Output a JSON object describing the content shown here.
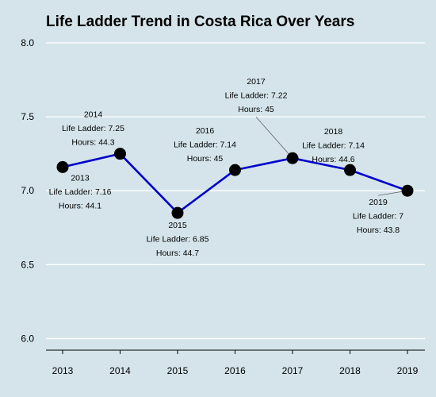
{
  "chart_data": {
    "type": "line",
    "title": "Life Ladder Trend in Costa Rica Over Years",
    "xlabel": "",
    "ylabel": "",
    "x": [
      2013,
      2014,
      2015,
      2016,
      2017,
      2018,
      2019
    ],
    "x_tick_labels": [
      "2013",
      "2014",
      "2015",
      "2016",
      "2017",
      "2018",
      "2019"
    ],
    "y_ticks": [
      6.0,
      6.5,
      7.0,
      7.5,
      8.0
    ],
    "y_tick_labels": [
      "6.0",
      "6.5",
      "7.0",
      "7.5",
      "8.0"
    ],
    "ylim": [
      5.97,
      8.0
    ],
    "grid": "horizontal",
    "legend": "none",
    "series": [
      {
        "values": [
          7.16,
          7.25,
          6.85,
          7.14,
          7.22,
          7.14,
          7.0
        ]
      }
    ],
    "annotations": [
      {
        "x": 2013,
        "y": 7.16,
        "lines": [
          "2013",
          "Life Ladder: 7.16",
          "Hours: 44.1"
        ]
      },
      {
        "x": 2014,
        "y": 7.25,
        "lines": [
          "2014",
          "Life Ladder: 7.25",
          "Hours: 44.3"
        ]
      },
      {
        "x": 2015,
        "y": 6.85,
        "lines": [
          "2015",
          "Life Ladder: 6.85",
          "Hours: 44.7"
        ]
      },
      {
        "x": 2016,
        "y": 7.14,
        "lines": [
          "2016",
          "Life Ladder: 7.14",
          "Hours: 45"
        ]
      },
      {
        "x": 2017,
        "y": 7.22,
        "lines": [
          "2017",
          "Life Ladder: 7.22",
          "Hours: 45"
        ]
      },
      {
        "x": 2018,
        "y": 7.14,
        "lines": [
          "2018",
          "Life Ladder: 7.14",
          "Hours: 44.6"
        ]
      },
      {
        "x": 2019,
        "y": 7.0,
        "lines": [
          "2019",
          "Life Ladder: 7",
          "Hours: 43.8"
        ]
      }
    ]
  },
  "colors": {
    "background": "#d5e4eb",
    "line": "#0000cc",
    "marker": "#000000",
    "gridline": "#ffffff",
    "axis": "#000000",
    "text": "#000000"
  }
}
